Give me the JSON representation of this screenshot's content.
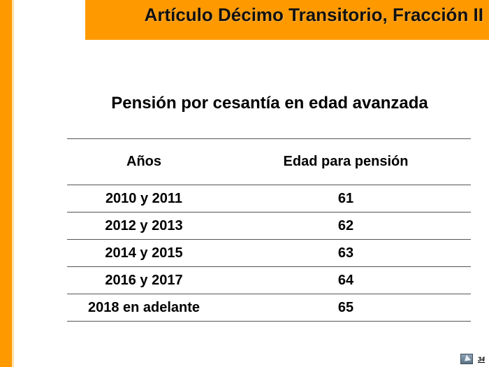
{
  "slide": {
    "title": "Artículo Décimo Transitorio, Fracción II",
    "subtitle": "Pensión por cesantía en edad avanzada",
    "page_number": "34"
  },
  "table": {
    "headers": {
      "years": "Años",
      "age": "Edad para pensión"
    },
    "rows": [
      {
        "years": "2010 y 2011",
        "age": "61"
      },
      {
        "years": "2012 y 2013",
        "age": "62"
      },
      {
        "years": "2014 y 2015",
        "age": "63"
      },
      {
        "years": "2016 y 2017",
        "age": "64"
      },
      {
        "years": "2018 en adelante",
        "age": "65"
      }
    ]
  },
  "colors": {
    "accent": "#FF9900"
  },
  "icons": {
    "nav": "back-arrow-icon"
  }
}
